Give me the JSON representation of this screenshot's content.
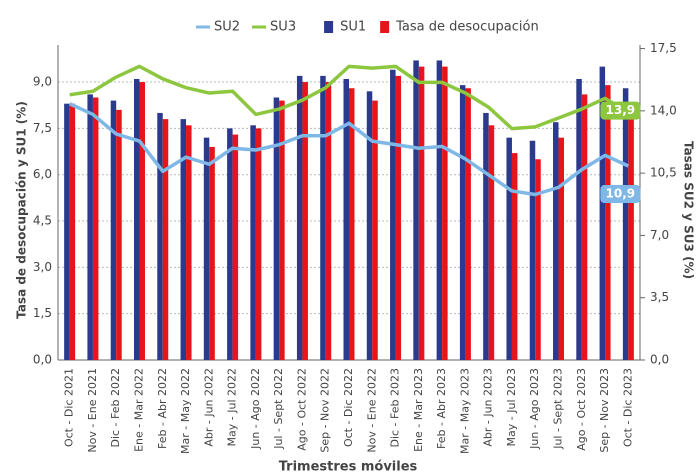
{
  "chart_data": {
    "type": "bar_line",
    "x_label": "Trimestres móviles",
    "y_label": "Tasa de desocupación y SU1 (%)",
    "y2_label": "Tasas SU2 y SU3 (%)",
    "categories": [
      "Oct - Dic 2021",
      "Nov - Ene 2021",
      "Dic - Feb 2022",
      "Ene - Mar 2022",
      "Feb - Abr 2022",
      "Mar - May 2022",
      "Abr - Jun 2022",
      "May - Jul 2022",
      "Jun - Ago 2022",
      "Jul - Sept 2022",
      "Ago - Oct 2022",
      "Sep - Nov 2022",
      "Oct - Dic 2022",
      "Nov - Ene 2022",
      "Dic - Feb 2023",
      "Ene - Mar 2023",
      "Feb - Abr 2023",
      "Mar - May 2023",
      "Abr - Jun 2023",
      "May - Jul 2023",
      "Jun - Ago 2023",
      "Jul - Sept 2023",
      "Ago - Oct 2023",
      "Sep - Nov 2023",
      "Oct - Dic 2023"
    ],
    "series": [
      {
        "name": "SU2",
        "color": "#7fb8e6",
        "kind": "line",
        "axis": "y2",
        "values": [
          14.4,
          13.8,
          12.7,
          12.3,
          10.6,
          11.4,
          11.0,
          11.9,
          11.8,
          12.1,
          12.6,
          12.6,
          13.3,
          12.3,
          12.1,
          11.9,
          12.0,
          11.3,
          10.4,
          9.5,
          9.3,
          9.7,
          10.7,
          11.5,
          10.9
        ],
        "value_labels": [
          null,
          null,
          null,
          null,
          null,
          null,
          null,
          null,
          null,
          null,
          null,
          null,
          null,
          null,
          null,
          null,
          null,
          null,
          null,
          null,
          null,
          null,
          null,
          null,
          "10,9"
        ]
      },
      {
        "name": "SU3",
        "color": "#8dc63f",
        "kind": "line",
        "axis": "y2",
        "values": [
          14.9,
          15.1,
          15.9,
          16.5,
          15.8,
          15.3,
          15.0,
          15.1,
          13.8,
          14.1,
          14.6,
          15.3,
          16.5,
          16.4,
          16.5,
          15.6,
          15.6,
          15.0,
          14.2,
          13.0,
          13.1,
          13.6,
          14.1,
          14.7,
          13.9
        ],
        "value_labels": [
          null,
          null,
          null,
          null,
          null,
          null,
          null,
          null,
          null,
          null,
          null,
          null,
          null,
          null,
          null,
          null,
          null,
          null,
          null,
          null,
          null,
          null,
          null,
          null,
          "13,9"
        ]
      },
      {
        "name": "SU1",
        "color": "#2b3a8c",
        "kind": "bar",
        "values": [
          8.3,
          8.6,
          8.4,
          9.1,
          8.0,
          7.8,
          7.2,
          7.5,
          7.6,
          8.5,
          9.2,
          9.2,
          9.1,
          8.7,
          9.4,
          9.7,
          9.7,
          8.9,
          8.0,
          7.2,
          7.1,
          7.7,
          9.1,
          9.5,
          8.8
        ]
      },
      {
        "name": "Tasa de desocupación",
        "color": "#e8141b",
        "kind": "bar",
        "values": [
          8.3,
          8.5,
          8.1,
          9.0,
          7.8,
          7.6,
          6.9,
          7.3,
          7.5,
          8.4,
          9.0,
          9.0,
          8.8,
          8.4,
          9.2,
          9.5,
          9.5,
          8.8,
          7.6,
          6.7,
          6.5,
          7.2,
          8.6,
          8.9,
          8.2
        ]
      }
    ],
    "ylim": [
      0,
      10.2
    ],
    "yticks": [
      {
        "value": 0,
        "label": "0,0"
      },
      {
        "value": 1.5,
        "label": "1,5"
      },
      {
        "value": 3,
        "label": "3,0"
      },
      {
        "value": 4.5,
        "label": "4,5"
      },
      {
        "value": 6,
        "label": "6,0"
      },
      {
        "value": 7.5,
        "label": "7,5"
      },
      {
        "value": 9,
        "label": "9,0"
      }
    ],
    "y2lim": [
      0,
      17.7
    ],
    "y2ticks": [
      {
        "value": 0,
        "label": "0,0"
      },
      {
        "value": 3.5,
        "label": "3,5"
      },
      {
        "value": 7,
        "label": "7,0"
      },
      {
        "value": 10.5,
        "label": "10,5"
      },
      {
        "value": 14,
        "label": "14,0"
      },
      {
        "value": 17.5,
        "label": "17,5"
      }
    ],
    "grid": true
  }
}
